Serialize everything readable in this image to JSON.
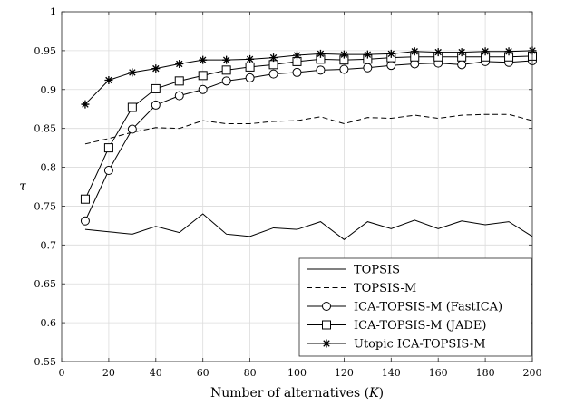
{
  "chart_data": {
    "type": "line",
    "title": "",
    "xlabel": "Number of alternatives (K)",
    "ylabel": "τ",
    "xlim": [
      0,
      200
    ],
    "ylim": [
      0.55,
      1.0
    ],
    "xticks": [
      0,
      20,
      40,
      60,
      80,
      100,
      120,
      140,
      160,
      180,
      200
    ],
    "xtick_labels": [
      "0",
      "20",
      "40",
      "60",
      "80",
      "100",
      "120",
      "140",
      "160",
      "180",
      "200"
    ],
    "yticks": [
      0.55,
      0.6,
      0.65,
      0.7,
      0.75,
      0.8,
      0.85,
      0.9,
      0.95,
      1.0
    ],
    "ytick_labels": [
      "0.55",
      "0.6",
      "0.65",
      "0.7",
      "0.75",
      "0.8",
      "0.85",
      "0.9",
      "0.95",
      "1"
    ],
    "grid": true,
    "legend_position": "bottom-right",
    "x": [
      10,
      20,
      30,
      40,
      50,
      60,
      70,
      80,
      90,
      100,
      110,
      120,
      130,
      140,
      150,
      160,
      170,
      180,
      190,
      200
    ],
    "series": [
      {
        "name": "TOPSIS",
        "line_style": "solid",
        "marker": "none",
        "values": [
          0.72,
          0.717,
          0.714,
          0.724,
          0.716,
          0.74,
          0.714,
          0.711,
          0.722,
          0.72,
          0.73,
          0.707,
          0.73,
          0.721,
          0.732,
          0.721,
          0.731,
          0.726,
          0.73,
          0.711
        ]
      },
      {
        "name": "TOPSIS-M",
        "line_style": "dashed",
        "marker": "none",
        "values": [
          0.83,
          0.837,
          0.845,
          0.851,
          0.85,
          0.86,
          0.856,
          0.856,
          0.859,
          0.86,
          0.865,
          0.856,
          0.864,
          0.863,
          0.867,
          0.863,
          0.867,
          0.868,
          0.868,
          0.86
        ]
      },
      {
        "name": "ICA-TOPSIS-M (FastICA)",
        "line_style": "solid",
        "marker": "circle",
        "values": [
          0.731,
          0.796,
          0.849,
          0.88,
          0.892,
          0.9,
          0.911,
          0.915,
          0.92,
          0.922,
          0.925,
          0.926,
          0.928,
          0.931,
          0.933,
          0.934,
          0.932,
          0.936,
          0.935,
          0.937
        ]
      },
      {
        "name": "ICA-TOPSIS-M (JADE)",
        "line_style": "solid",
        "marker": "square",
        "values": [
          0.759,
          0.825,
          0.877,
          0.901,
          0.911,
          0.918,
          0.925,
          0.929,
          0.932,
          0.936,
          0.939,
          0.938,
          0.939,
          0.941,
          0.942,
          0.942,
          0.942,
          0.942,
          0.942,
          0.943
        ]
      },
      {
        "name": "Utopic ICA-TOPSIS-M",
        "line_style": "solid",
        "marker": "star",
        "values": [
          0.881,
          0.912,
          0.922,
          0.927,
          0.933,
          0.938,
          0.938,
          0.939,
          0.941,
          0.944,
          0.946,
          0.945,
          0.945,
          0.946,
          0.949,
          0.948,
          0.948,
          0.949,
          0.949,
          0.95
        ]
      }
    ]
  }
}
